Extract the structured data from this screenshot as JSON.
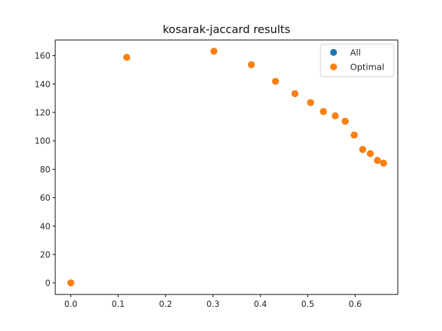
{
  "chart_data": {
    "type": "scatter",
    "title": "kosarak-jaccard results",
    "xlabel": "",
    "ylabel": "",
    "xlim": [
      -0.0328,
      0.69
    ],
    "ylim": [
      -8.15,
      171.0
    ],
    "x_ticks": [
      0.0,
      0.1,
      0.2,
      0.3,
      0.4,
      0.5,
      0.6
    ],
    "x_tick_labels": [
      "0.0",
      "0.1",
      "0.2",
      "0.3",
      "0.4",
      "0.5",
      "0.6"
    ],
    "y_ticks": [
      0,
      20,
      40,
      60,
      80,
      100,
      120,
      140,
      160
    ],
    "y_tick_labels": [
      "0",
      "20",
      "40",
      "60",
      "80",
      "100",
      "120",
      "140",
      "160"
    ],
    "grid": false,
    "legend_position": "top-right",
    "series": [
      {
        "name": "All",
        "color": "#1f77b4",
        "points": [
          [
            0.0,
            0.0
          ],
          [
            0.118,
            158.8
          ],
          [
            0.302,
            163.1
          ],
          [
            0.381,
            153.6
          ],
          [
            0.432,
            141.9
          ],
          [
            0.473,
            133.2
          ],
          [
            0.506,
            126.9
          ],
          [
            0.533,
            120.6
          ],
          [
            0.558,
            117.6
          ],
          [
            0.579,
            113.8
          ],
          [
            0.598,
            104.1
          ],
          [
            0.616,
            93.9
          ],
          [
            0.632,
            91.0
          ],
          [
            0.647,
            86.2
          ],
          [
            0.66,
            84.3
          ]
        ]
      },
      {
        "name": "Optimal",
        "color": "#ff7f0e",
        "points": [
          [
            0.0,
            0.0
          ],
          [
            0.118,
            158.8
          ],
          [
            0.302,
            163.1
          ],
          [
            0.381,
            153.6
          ],
          [
            0.432,
            141.9
          ],
          [
            0.473,
            133.2
          ],
          [
            0.506,
            126.9
          ],
          [
            0.533,
            120.6
          ],
          [
            0.558,
            117.6
          ],
          [
            0.579,
            113.8
          ],
          [
            0.598,
            104.1
          ],
          [
            0.616,
            93.9
          ],
          [
            0.632,
            91.0
          ],
          [
            0.647,
            86.2
          ],
          [
            0.66,
            84.3
          ]
        ]
      }
    ]
  }
}
